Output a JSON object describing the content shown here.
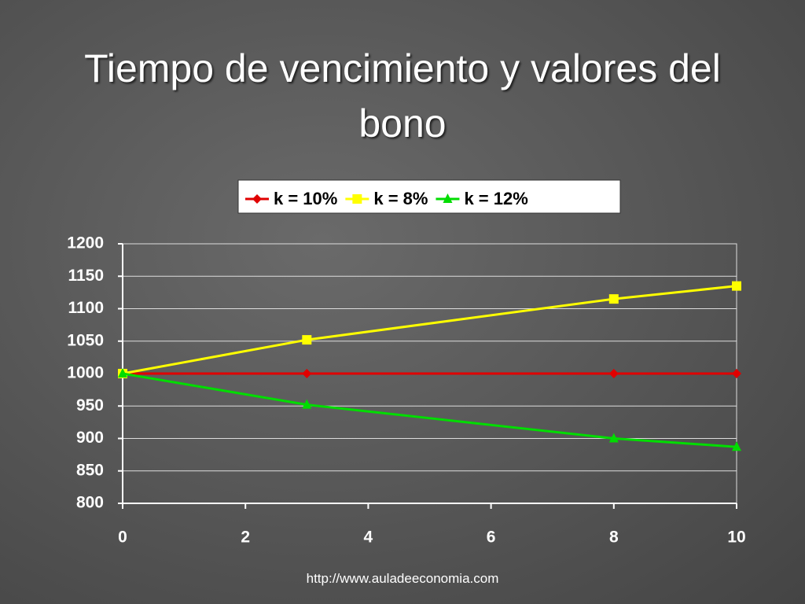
{
  "chart_data": {
    "type": "line",
    "title": "Tiempo de vencimiento y valores del bono",
    "x": [
      0,
      3,
      8,
      10
    ],
    "series": [
      {
        "name": "k = 10%",
        "color": "#e00000",
        "marker": "diamond",
        "values": [
          1000,
          1000,
          1000,
          1000
        ]
      },
      {
        "name": "k = 8%",
        "color": "#ffff00",
        "marker": "square",
        "values": [
          1000,
          1052,
          1115,
          1135
        ]
      },
      {
        "name": "k = 12%",
        "color": "#00dd00",
        "marker": "triangle",
        "values": [
          1000,
          952,
          900,
          887
        ]
      }
    ],
    "xlim": [
      0,
      10
    ],
    "xticks": [
      0,
      2,
      4,
      6,
      8,
      10
    ],
    "ylim": [
      800,
      1200
    ],
    "yticks": [
      800,
      850,
      900,
      950,
      1000,
      1050,
      1100,
      1150,
      1200
    ],
    "grid": true,
    "legend": "top",
    "source": "http://www.auladeeconomia.com"
  }
}
